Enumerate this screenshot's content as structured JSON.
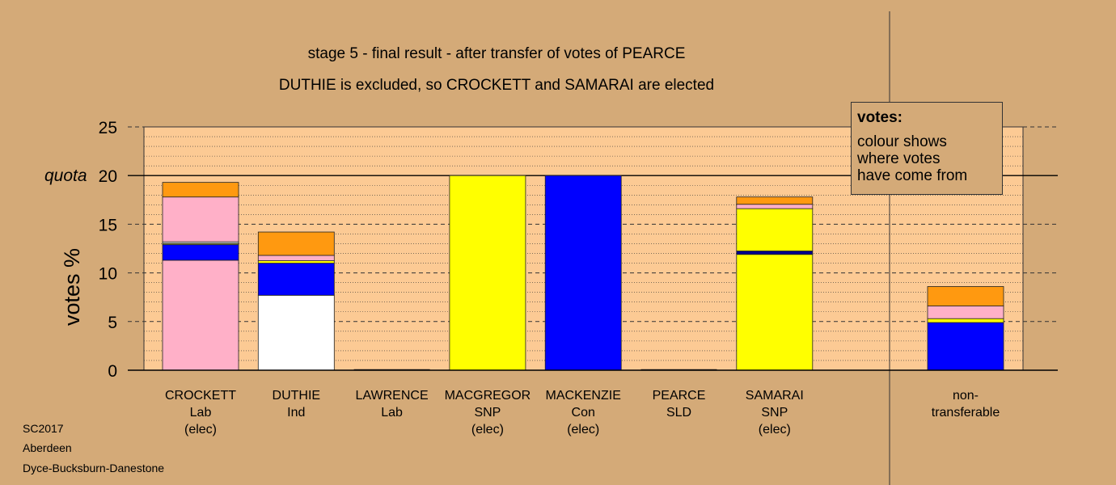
{
  "footer": {
    "lines": [
      "SC2017",
      "Aberdeen",
      "Dyce-Bucksburn-Danestone"
    ]
  },
  "legend": {
    "title": "votes:",
    "lines": [
      "colour shows",
      "where votes",
      "have come from"
    ]
  },
  "colors": {
    "background": "#d4aa78",
    "plot_area": "#fcca94",
    "pink": "#ffb0c8",
    "blue": "#0000ff",
    "navy": "#00008b",
    "white": "#ffffff",
    "orange": "#ff9910",
    "yellow": "#ffff00",
    "olive": "#9a9a40"
  },
  "chart_data": {
    "type": "bar",
    "stacked": true,
    "title": "stage 5 - final result - after transfer of votes of PEARCE",
    "subtitle": "DUTHIE is excluded, so CROCKETT and SAMARAI are elected",
    "ylabel": "votes %",
    "ylim": [
      0,
      25
    ],
    "yticks": [
      0,
      5,
      10,
      15,
      20,
      25
    ],
    "quota": {
      "value": 20,
      "label": "quota"
    },
    "grid": true,
    "candidates": [
      {
        "name": "CROCKETT",
        "party": "Lab",
        "status": "(elec)",
        "segments": [
          {
            "value": 11.3,
            "color": "pink"
          },
          {
            "value": 1.6,
            "color": "blue"
          },
          {
            "value": 0.15,
            "color": "olive"
          },
          {
            "value": 0.15,
            "color": "white"
          },
          {
            "value": 4.6,
            "color": "pink"
          },
          {
            "value": 1.5,
            "color": "orange"
          }
        ]
      },
      {
        "name": "DUTHIE",
        "party": "Ind",
        "status": "",
        "segments": [
          {
            "value": 7.7,
            "color": "white"
          },
          {
            "value": 3.3,
            "color": "blue"
          },
          {
            "value": 0.25,
            "color": "yellow"
          },
          {
            "value": 0.55,
            "color": "pink"
          },
          {
            "value": 2.4,
            "color": "orange"
          }
        ]
      },
      {
        "name": "LAWRENCE",
        "party": "Lab",
        "status": "",
        "segments": []
      },
      {
        "name": "MACGREGOR",
        "party": "SNP",
        "status": "(elec)",
        "segments": [
          {
            "value": 20,
            "color": "yellow"
          }
        ]
      },
      {
        "name": "MACKENZIE",
        "party": "Con",
        "status": "(elec)",
        "segments": [
          {
            "value": 20,
            "color": "blue"
          }
        ]
      },
      {
        "name": "PEARCE",
        "party": "SLD",
        "status": "",
        "segments": []
      },
      {
        "name": "SAMARAI",
        "party": "SNP",
        "status": "(elec)",
        "segments": [
          {
            "value": 11.9,
            "color": "yellow"
          },
          {
            "value": 0.35,
            "color": "navy"
          },
          {
            "value": 4.35,
            "color": "yellow"
          },
          {
            "value": 0.45,
            "color": "pink"
          },
          {
            "value": 0.75,
            "color": "orange"
          }
        ]
      }
    ],
    "nontransferable": {
      "label_lines": [
        "non-",
        "transferable"
      ],
      "segments": [
        {
          "value": 4.9,
          "color": "blue"
        },
        {
          "value": 0.4,
          "color": "yellow"
        },
        {
          "value": 1.3,
          "color": "pink"
        },
        {
          "value": 2.0,
          "color": "orange"
        }
      ]
    }
  }
}
